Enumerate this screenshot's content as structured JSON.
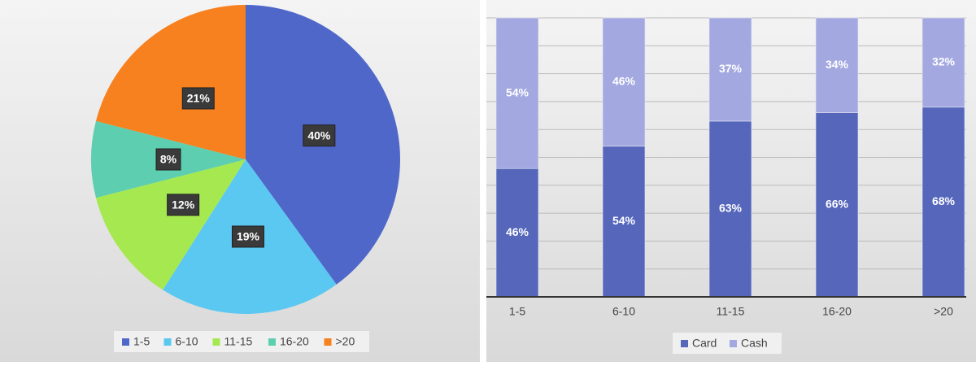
{
  "chart_data": [
    {
      "type": "pie",
      "categories": [
        "1-5",
        "6-10",
        "11-15",
        "16-20",
        ">20"
      ],
      "values": [
        40,
        19,
        12,
        8,
        21
      ],
      "value_labels": [
        "40%",
        "19%",
        "12%",
        "8%",
        "21%"
      ],
      "colors": [
        "#4f67c9",
        "#5bc8f2",
        "#a6e84f",
        "#5dcfb0",
        "#f7801f"
      ],
      "legend": "bottom"
    },
    {
      "type": "stacked_bar",
      "categories": [
        "1-5",
        "6-10",
        "11-15",
        "16-20",
        ">20"
      ],
      "series": [
        {
          "name": "Card",
          "color": "#5566bb",
          "values": [
            46,
            54,
            63,
            66,
            68
          ],
          "value_labels": [
            "46%",
            "54%",
            "63%",
            "66%",
            "68%"
          ]
        },
        {
          "name": "Cash",
          "color": "#a3a9e0",
          "values": [
            54,
            46,
            37,
            34,
            32
          ],
          "value_labels": [
            "54%",
            "46%",
            "37%",
            "34%",
            "32%"
          ]
        }
      ],
      "ylim": [
        0,
        100
      ],
      "yticks": [
        0,
        10,
        20,
        30,
        40,
        50,
        60,
        70,
        80,
        90,
        100
      ],
      "grid": true,
      "legend": "bottom"
    }
  ]
}
